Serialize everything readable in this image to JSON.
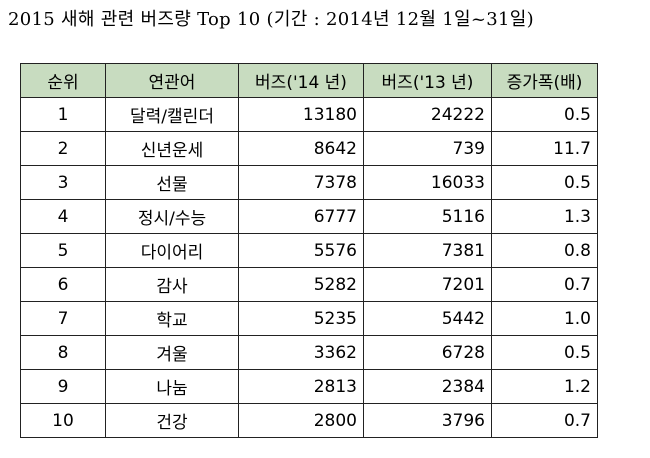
{
  "title": "2015 새해 관련 버즈량 Top 10 (기간 : 2014년 12월 1일~31일)",
  "table": {
    "headers": {
      "rank": "순위",
      "keyword": "연관어",
      "buzz14": "버즈('14 년)",
      "buzz13": "버즈('13 년)",
      "increase": "증가폭(배)"
    },
    "rows": [
      {
        "rank": "1",
        "keyword": "달력/캘린더",
        "buzz14": "13180",
        "buzz13": "24222",
        "increase": "0.5"
      },
      {
        "rank": "2",
        "keyword": "신년운세",
        "buzz14": "8642",
        "buzz13": "739",
        "increase": "11.7"
      },
      {
        "rank": "3",
        "keyword": "선물",
        "buzz14": "7378",
        "buzz13": "16033",
        "increase": "0.5"
      },
      {
        "rank": "4",
        "keyword": "정시/수능",
        "buzz14": "6777",
        "buzz13": "5116",
        "increase": "1.3"
      },
      {
        "rank": "5",
        "keyword": "다이어리",
        "buzz14": "5576",
        "buzz13": "7381",
        "increase": "0.8"
      },
      {
        "rank": "6",
        "keyword": "감사",
        "buzz14": "5282",
        "buzz13": "7201",
        "increase": "0.7"
      },
      {
        "rank": "7",
        "keyword": "학교",
        "buzz14": "5235",
        "buzz13": "5442",
        "increase": "1.0"
      },
      {
        "rank": "8",
        "keyword": "겨울",
        "buzz14": "3362",
        "buzz13": "6728",
        "increase": "0.5"
      },
      {
        "rank": "9",
        "keyword": "나눔",
        "buzz14": "2813",
        "buzz13": "2384",
        "increase": "1.2"
      },
      {
        "rank": "10",
        "keyword": "건강",
        "buzz14": "2800",
        "buzz13": "3796",
        "increase": "0.7"
      }
    ]
  },
  "colors": {
    "header_bg": "#c8dcc0",
    "border": "#222222"
  }
}
